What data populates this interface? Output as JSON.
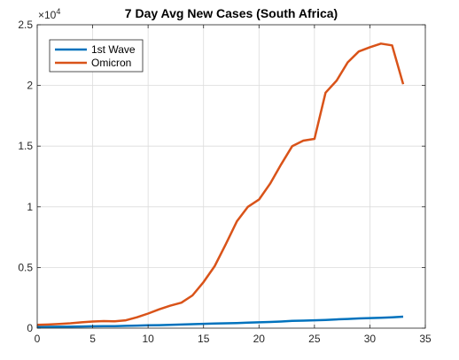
{
  "chart_data": {
    "type": "line",
    "title": "7 Day Avg New Cases (South Africa)",
    "xlabel": "",
    "ylabel": "",
    "xlim": [
      0,
      35
    ],
    "ylim": [
      0,
      25000
    ],
    "x_ticks": [
      0,
      5,
      10,
      15,
      20,
      25,
      30,
      35
    ],
    "x_tick_labels": [
      "0",
      "5",
      "10",
      "15",
      "20",
      "25",
      "30",
      "35"
    ],
    "y_ticks": [
      0,
      5000,
      10000,
      15000,
      20000,
      25000
    ],
    "y_tick_labels": [
      "0",
      "0.5",
      "1",
      "1.5",
      "2",
      "2.5"
    ],
    "y_exponent_base": "×10",
    "y_exponent_power": "4",
    "grid": true,
    "legend_position": "top-left",
    "series": [
      {
        "name": "1st Wave",
        "color": "#0072BD",
        "x": [
          0,
          1,
          2,
          3,
          4,
          5,
          6,
          7,
          8,
          9,
          10,
          11,
          12,
          13,
          14,
          15,
          16,
          17,
          18,
          19,
          20,
          21,
          22,
          23,
          24,
          25,
          26,
          27,
          28,
          29,
          30,
          31,
          32,
          33
        ],
        "values": [
          100,
          110,
          120,
          130,
          140,
          150,
          160,
          170,
          190,
          210,
          230,
          250,
          270,
          300,
          330,
          360,
          380,
          400,
          420,
          450,
          480,
          510,
          550,
          600,
          620,
          650,
          680,
          720,
          760,
          800,
          830,
          860,
          900,
          950
        ]
      },
      {
        "name": "Omicron",
        "color": "#D95319",
        "x": [
          0,
          1,
          2,
          3,
          4,
          5,
          6,
          7,
          8,
          9,
          10,
          11,
          12,
          13,
          14,
          15,
          16,
          17,
          18,
          19,
          20,
          21,
          22,
          23,
          24,
          25,
          26,
          27,
          28,
          29,
          30,
          31,
          32,
          33
        ],
        "values": [
          270,
          300,
          340,
          400,
          480,
          550,
          580,
          560,
          650,
          900,
          1200,
          1550,
          1850,
          2100,
          2700,
          3800,
          5100,
          6900,
          8800,
          10000,
          10600,
          11900,
          13500,
          15000,
          15450,
          15600,
          19400,
          20400,
          21900,
          22800,
          23150,
          23450,
          23300,
          20100
        ]
      }
    ]
  }
}
